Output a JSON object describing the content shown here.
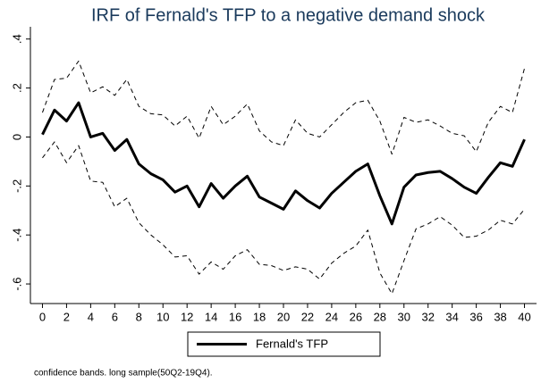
{
  "chart_data": {
    "type": "line",
    "title": "IRF of Fernald's TFP to a negative demand shock",
    "note": "confidence bands. long sample(50Q2-19Q4).",
    "x": [
      0,
      1,
      2,
      3,
      4,
      5,
      6,
      7,
      8,
      9,
      10,
      11,
      12,
      13,
      14,
      15,
      16,
      17,
      18,
      19,
      20,
      21,
      22,
      23,
      24,
      25,
      26,
      27,
      28,
      29,
      30,
      31,
      32,
      33,
      34,
      35,
      36,
      37,
      38,
      39,
      40
    ],
    "series": [
      {
        "name": "Fernald's TFP",
        "color": "#000000",
        "style": "solid",
        "values": [
          0.01,
          0.11,
          0.065,
          0.14,
          0.0,
          0.015,
          -0.055,
          -0.01,
          -0.11,
          -0.15,
          -0.175,
          -0.225,
          -0.2,
          -0.285,
          -0.19,
          -0.25,
          -0.2,
          -0.16,
          -0.245,
          -0.27,
          -0.295,
          -0.22,
          -0.26,
          -0.29,
          -0.23,
          -0.185,
          -0.14,
          -0.11,
          -0.24,
          -0.355,
          -0.205,
          -0.155,
          -0.145,
          -0.14,
          -0.17,
          -0.205,
          -0.23,
          -0.165,
          -0.105,
          -0.12,
          -0.01
        ]
      },
      {
        "color": "#000000",
        "style": "dashed",
        "values": [
          0.1,
          0.235,
          0.24,
          0.31,
          0.18,
          0.205,
          0.17,
          0.235,
          0.125,
          0.095,
          0.09,
          0.045,
          0.085,
          -0.005,
          0.125,
          0.05,
          0.085,
          0.135,
          0.025,
          -0.02,
          -0.035,
          0.07,
          0.015,
          0.0,
          0.05,
          0.1,
          0.14,
          0.15,
          0.065,
          -0.07,
          0.08,
          0.06,
          0.07,
          0.045,
          0.015,
          0.005,
          -0.06,
          0.06,
          0.125,
          0.1,
          0.28
        ]
      },
      {
        "color": "#000000",
        "style": "dashed",
        "values": [
          -0.085,
          -0.02,
          -0.105,
          -0.035,
          -0.18,
          -0.185,
          -0.285,
          -0.25,
          -0.35,
          -0.4,
          -0.44,
          -0.49,
          -0.485,
          -0.56,
          -0.51,
          -0.54,
          -0.485,
          -0.46,
          -0.52,
          -0.525,
          -0.545,
          -0.53,
          -0.54,
          -0.58,
          -0.515,
          -0.475,
          -0.445,
          -0.38,
          -0.555,
          -0.64,
          -0.505,
          -0.375,
          -0.355,
          -0.325,
          -0.36,
          -0.41,
          -0.405,
          -0.38,
          -0.34,
          -0.355,
          -0.295
        ]
      }
    ],
    "xlim": [
      -1,
      41
    ],
    "xticks": [
      0,
      2,
      4,
      6,
      8,
      10,
      12,
      14,
      16,
      18,
      20,
      22,
      24,
      26,
      28,
      30,
      32,
      34,
      36,
      38,
      40
    ],
    "ylim": [
      -0.68,
      0.45
    ],
    "yticks": [
      {
        "value": -0.6,
        "label": "-.6"
      },
      {
        "value": -0.4,
        "label": "-.4"
      },
      {
        "value": -0.2,
        "label": "-.2"
      },
      0,
      {
        "value": 0.2,
        "label": ".2"
      },
      {
        "value": 0.4,
        "label": ".4"
      }
    ],
    "grid": false,
    "legend": "bottom"
  }
}
